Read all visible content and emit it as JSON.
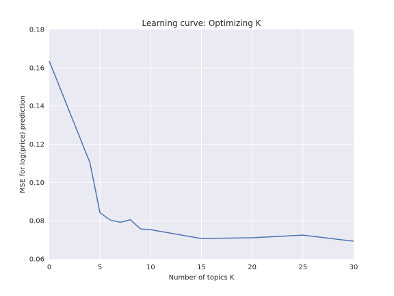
{
  "chart_data": {
    "type": "line",
    "title": "Learning curve: Optimizing K",
    "xlabel": "Number of topics K",
    "ylabel": "MSE for log(price) prediction",
    "xlim": [
      0,
      30
    ],
    "ylim": [
      0.06,
      0.18
    ],
    "xticks": [
      0,
      5,
      10,
      15,
      20,
      25,
      30
    ],
    "xtick_labels": [
      "0",
      "5",
      "10",
      "15",
      "20",
      "25",
      "30"
    ],
    "yticks": [
      0.06,
      0.08,
      0.1,
      0.12,
      0.14,
      0.16,
      0.18
    ],
    "ytick_labels": [
      "0.06",
      "0.08",
      "0.10",
      "0.12",
      "0.14",
      "0.16",
      "0.18"
    ],
    "grid": true,
    "series": [
      {
        "x": [
          0,
          4,
          5,
          6,
          7,
          8,
          9,
          10,
          15,
          20,
          25,
          30
        ],
        "y": [
          0.1635,
          0.1105,
          0.0842,
          0.0804,
          0.0792,
          0.0805,
          0.0757,
          0.0753,
          0.0707,
          0.0711,
          0.0725,
          0.0693
        ],
        "color": "#4c72b0"
      }
    ],
    "background_color": "#eaeaf2",
    "grid_color": "#ffffff"
  }
}
